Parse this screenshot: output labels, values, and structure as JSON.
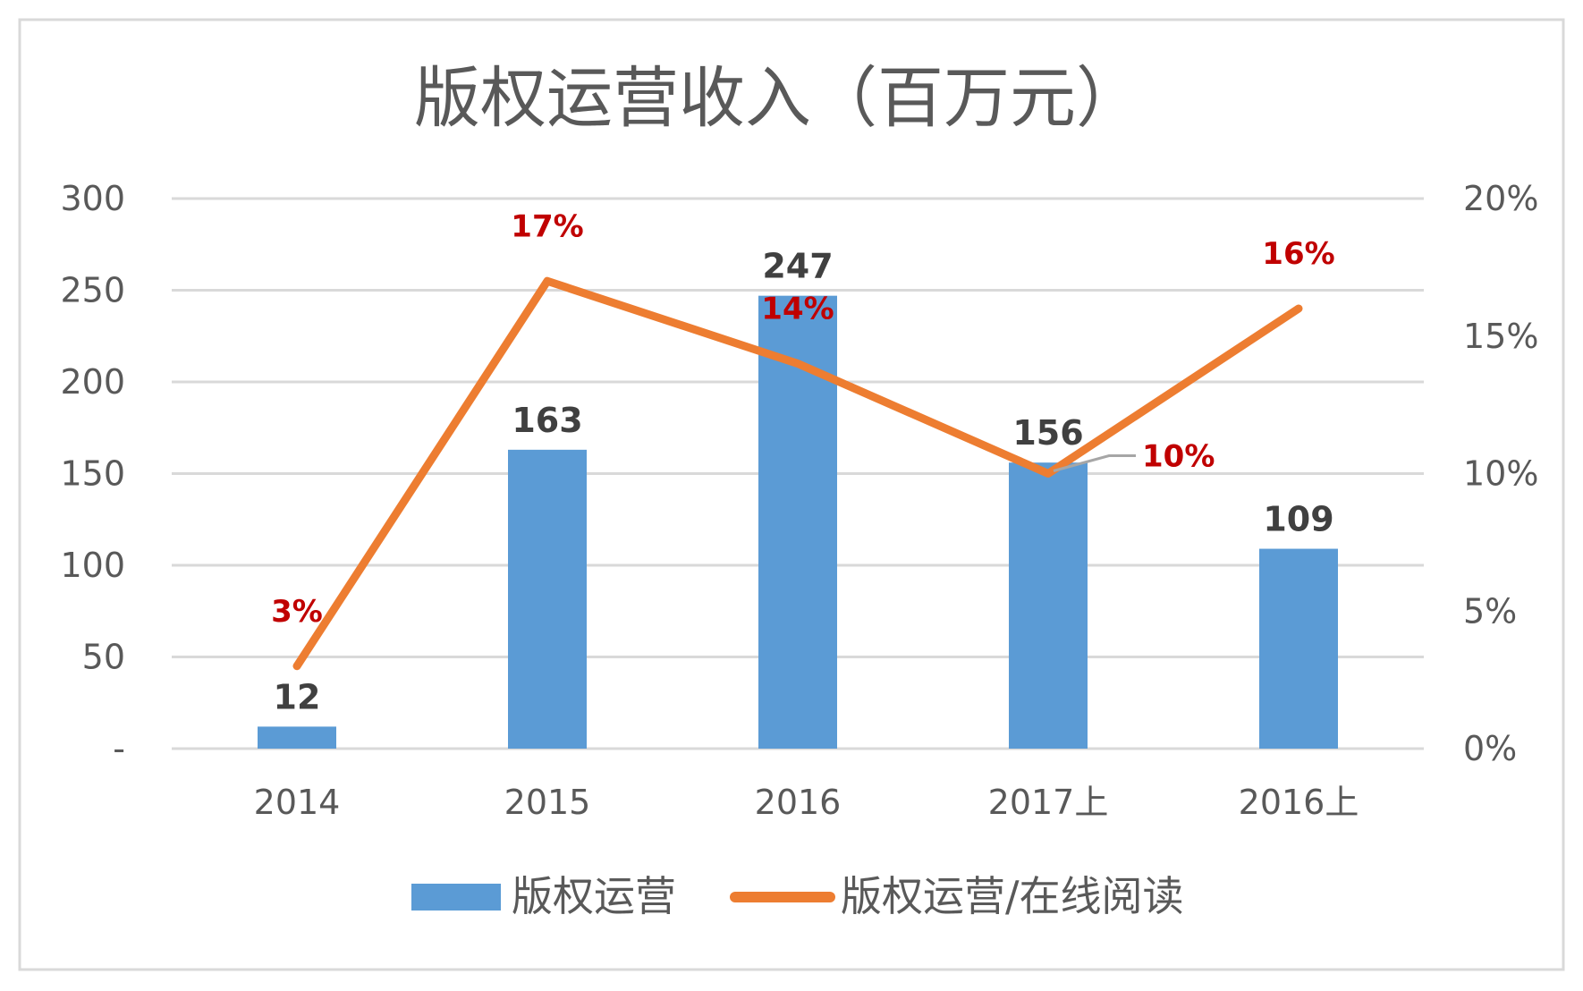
{
  "chart_data": {
    "type": "bar",
    "title": "版权运营收入（百万元）",
    "categories": [
      "2014",
      "2015",
      "2016",
      "2017上",
      "2016上"
    ],
    "series": [
      {
        "name": "版权运营",
        "type": "bar",
        "axis": "left",
        "values": [
          12,
          163,
          247,
          156,
          109
        ],
        "labels": [
          "12",
          "163",
          "247",
          "156",
          "109"
        ]
      },
      {
        "name": "版权运营/在线阅读",
        "type": "line",
        "axis": "right",
        "values": [
          3,
          17,
          14,
          10,
          16
        ],
        "labels": [
          "3%",
          "17%",
          "14%",
          "10%",
          "16%"
        ]
      }
    ],
    "ylim": [
      0,
      300
    ],
    "yticks": [
      "-",
      "50",
      "100",
      "150",
      "200",
      "250",
      "300"
    ],
    "y2lim": [
      0,
      20
    ],
    "y2ticks": [
      "0%",
      "5%",
      "10%",
      "15%",
      "20%"
    ],
    "grid": true,
    "legend_position": "bottom",
    "colors": {
      "bar": "#5b9bd5",
      "line": "#ed7d31",
      "pct_label": "#c00000",
      "bar_label": "#404040",
      "grid": "#d9d9d9",
      "frame": "#d9d9d9"
    }
  }
}
